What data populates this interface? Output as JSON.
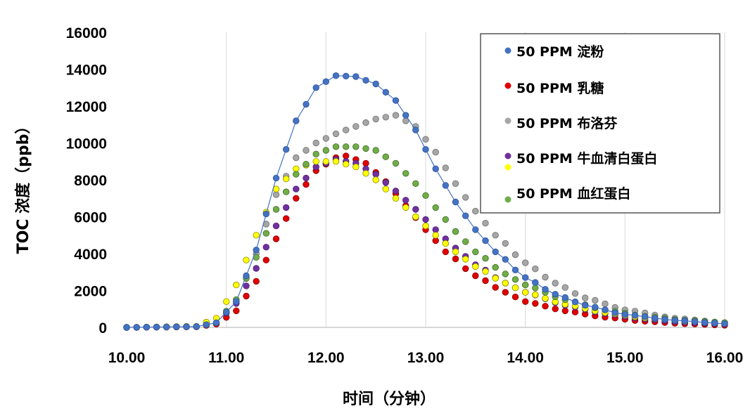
{
  "chart_data": {
    "type": "line",
    "title": "",
    "xlabel": "时间（分钟）",
    "ylabel": "TOC 浓度（ppb）",
    "xlim": [
      10.0,
      16.0
    ],
    "ylim": [
      0,
      16000
    ],
    "xticks": [
      10,
      11,
      12,
      13,
      14,
      15,
      16
    ],
    "xtick_labels": [
      "10.00",
      "11.00",
      "12.00",
      "13.00",
      "14.00",
      "15.00",
      "16.00"
    ],
    "yticks": [
      0,
      2000,
      4000,
      6000,
      8000,
      10000,
      12000,
      14000,
      16000
    ],
    "ytick_labels": [
      "0",
      "2000",
      "4000",
      "6000",
      "8000",
      "10000",
      "12000",
      "14000",
      "16000"
    ],
    "grid": "vertical",
    "legend_position": "top-right",
    "x_sampling": {
      "start": 10.0,
      "end": 16.0,
      "step": 0.1
    },
    "series": [
      {
        "name": "50 PPM 淀粉",
        "color": "#4472C4",
        "marker_stroke": "#2F5597",
        "line": true,
        "anchors": [
          [
            10.0,
            0
          ],
          [
            10.7,
            40
          ],
          [
            10.9,
            250
          ],
          [
            11.1,
            1400
          ],
          [
            11.3,
            4200
          ],
          [
            11.5,
            8100
          ],
          [
            11.7,
            11200
          ],
          [
            11.9,
            13000
          ],
          [
            12.1,
            13650
          ],
          [
            12.3,
            13600
          ],
          [
            12.5,
            13200
          ],
          [
            12.7,
            12300
          ],
          [
            12.9,
            10700
          ],
          [
            13.1,
            8600
          ],
          [
            13.3,
            6800
          ],
          [
            13.5,
            5300
          ],
          [
            13.7,
            4100
          ],
          [
            14.0,
            2700
          ],
          [
            14.3,
            1800
          ],
          [
            14.6,
            1200
          ],
          [
            15.0,
            700
          ],
          [
            15.5,
            380
          ],
          [
            16.0,
            200
          ]
        ]
      },
      {
        "name": "50 PPM 乳糖",
        "color": "#E00000",
        "marker_stroke": "#8B0000",
        "line": false,
        "anchors": [
          [
            10.0,
            0
          ],
          [
            10.7,
            30
          ],
          [
            10.9,
            180
          ],
          [
            11.1,
            900
          ],
          [
            11.3,
            2500
          ],
          [
            11.5,
            4800
          ],
          [
            11.7,
            7000
          ],
          [
            11.9,
            8500
          ],
          [
            12.1,
            9200
          ],
          [
            12.2,
            9300
          ],
          [
            12.4,
            8900
          ],
          [
            12.6,
            7900
          ],
          [
            12.8,
            6600
          ],
          [
            13.0,
            5300
          ],
          [
            13.2,
            4100
          ],
          [
            13.5,
            2800
          ],
          [
            13.8,
            1900
          ],
          [
            14.0,
            1400
          ],
          [
            14.4,
            900
          ],
          [
            14.8,
            550
          ],
          [
            15.2,
            330
          ],
          [
            15.6,
            200
          ],
          [
            16.0,
            120
          ]
        ]
      },
      {
        "name": "50 PPM 布洛芬",
        "color": "#A6A6A6",
        "marker_stroke": "#6E6E6E",
        "line": false,
        "anchors": [
          [
            10.0,
            0
          ],
          [
            10.7,
            40
          ],
          [
            10.9,
            250
          ],
          [
            11.1,
            1400
          ],
          [
            11.3,
            4000
          ],
          [
            11.5,
            7200
          ],
          [
            11.7,
            9200
          ],
          [
            11.9,
            10000
          ],
          [
            12.1,
            10500
          ],
          [
            12.3,
            10900
          ],
          [
            12.5,
            11300
          ],
          [
            12.7,
            11500
          ],
          [
            12.9,
            10900
          ],
          [
            13.1,
            9500
          ],
          [
            13.3,
            7800
          ],
          [
            13.5,
            6300
          ],
          [
            13.7,
            5000
          ],
          [
            14.0,
            3500
          ],
          [
            14.3,
            2400
          ],
          [
            14.6,
            1600
          ],
          [
            15.0,
            950
          ],
          [
            15.5,
            500
          ],
          [
            16.0,
            250
          ]
        ]
      },
      {
        "name": "50 PPM 牛血清白蛋白",
        "color": "#7030A0",
        "marker_stroke": "#4B1F6F",
        "line": false,
        "anchors": [
          [
            10.0,
            0
          ],
          [
            10.7,
            40
          ],
          [
            10.9,
            250
          ],
          [
            11.1,
            1300
          ],
          [
            11.3,
            3200
          ],
          [
            11.5,
            5500
          ],
          [
            11.7,
            7500
          ],
          [
            11.9,
            8700
          ],
          [
            12.1,
            9100
          ],
          [
            12.3,
            8900
          ],
          [
            12.5,
            8300
          ],
          [
            12.7,
            7400
          ],
          [
            12.9,
            6400
          ],
          [
            13.1,
            5300
          ],
          [
            13.3,
            4300
          ],
          [
            13.5,
            3400
          ],
          [
            13.8,
            2400
          ],
          [
            14.0,
            1900
          ],
          [
            14.4,
            1200
          ],
          [
            14.8,
            750
          ],
          [
            15.2,
            450
          ],
          [
            15.6,
            280
          ],
          [
            16.0,
            180
          ]
        ]
      },
      {
        "name": "50 PPM 牛血清白蛋白 (yellow)",
        "color": "#FFFF00",
        "marker_stroke": "#8C8C00",
        "line": false,
        "anchors": [
          [
            10.0,
            0
          ],
          [
            10.7,
            60
          ],
          [
            10.9,
            500
          ],
          [
            11.1,
            2300
          ],
          [
            11.3,
            5000
          ],
          [
            11.5,
            7500
          ],
          [
            11.7,
            8600
          ],
          [
            11.9,
            9000
          ],
          [
            12.1,
            9000
          ],
          [
            12.3,
            8700
          ],
          [
            12.5,
            8000
          ],
          [
            12.7,
            7000
          ],
          [
            12.9,
            6000
          ],
          [
            13.1,
            5000
          ],
          [
            13.3,
            4100
          ],
          [
            13.5,
            3300
          ],
          [
            13.8,
            2400
          ],
          [
            14.0,
            1900
          ],
          [
            14.4,
            1250
          ],
          [
            14.8,
            800
          ],
          [
            15.2,
            520
          ],
          [
            15.6,
            340
          ],
          [
            16.0,
            240
          ]
        ]
      },
      {
        "name": "50 PPM 血红蛋白",
        "color": "#70AD47",
        "marker_stroke": "#3E6B26",
        "line": false,
        "anchors": [
          [
            10.0,
            0
          ],
          [
            10.7,
            40
          ],
          [
            10.9,
            250
          ],
          [
            11.1,
            1500
          ],
          [
            11.3,
            3800
          ],
          [
            11.5,
            6400
          ],
          [
            11.7,
            8300
          ],
          [
            11.9,
            9400
          ],
          [
            12.1,
            9800
          ],
          [
            12.3,
            9800
          ],
          [
            12.5,
            9600
          ],
          [
            12.7,
            8900
          ],
          [
            12.9,
            7800
          ],
          [
            13.1,
            6500
          ],
          [
            13.3,
            5200
          ],
          [
            13.5,
            4100
          ],
          [
            13.8,
            2900
          ],
          [
            14.0,
            2300
          ],
          [
            14.4,
            1500
          ],
          [
            14.8,
            950
          ],
          [
            15.2,
            600
          ],
          [
            15.6,
            380
          ],
          [
            16.0,
            260
          ]
        ]
      }
    ],
    "legend": [
      {
        "label": "50 PPM 淀粉",
        "color": "#4472C4"
      },
      {
        "label": "50 PPM 乳糖",
        "color": "#E00000"
      },
      {
        "label": "50 PPM 布洛芬",
        "color": "#A6A6A6"
      },
      {
        "label": "50 PPM 牛血清白蛋白",
        "color": "#FFFF00",
        "color2": "#7030A0"
      },
      {
        "label": "50 PPM 血红蛋白",
        "color": "#70AD47"
      }
    ]
  }
}
